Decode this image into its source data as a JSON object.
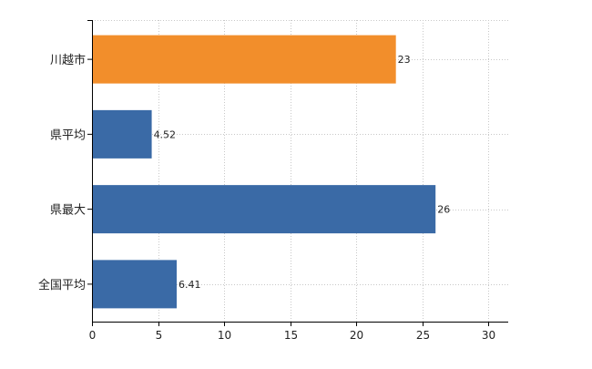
{
  "chart_data": {
    "type": "bar",
    "orientation": "horizontal",
    "categories": [
      "川越市",
      "県平均",
      "県最大",
      "全国平均"
    ],
    "values": [
      23,
      4.52,
      26,
      6.41
    ],
    "value_labels": [
      "23",
      "4.52",
      "26",
      "6.41"
    ],
    "bar_colors": [
      "#F28E2B",
      "#3A6AA6",
      "#3A6AA6",
      "#3A6AA6"
    ],
    "xlim": [
      0,
      31.5
    ],
    "xticks": [
      0,
      5,
      10,
      15,
      20,
      25,
      30
    ],
    "xtick_labels": [
      "0",
      "5",
      "10",
      "15",
      "20",
      "25",
      "30"
    ],
    "grid": true,
    "grid_style": "dotted",
    "legend": "none",
    "title": "",
    "xlabel": "",
    "ylabel": ""
  }
}
